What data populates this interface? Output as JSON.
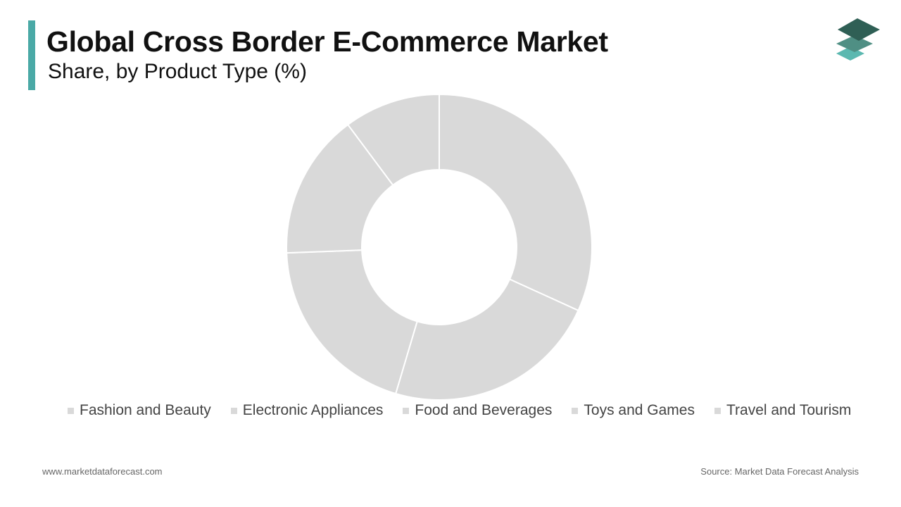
{
  "header": {
    "title": "Global Cross Border E-Commerce Market",
    "subtitle": "Share, by Product Type (%)"
  },
  "colors": {
    "accent": "#4aa9a6",
    "slice": "#d9d9d9",
    "logo_dark": "#2f5f55",
    "logo_mid": "#4f8f84",
    "logo_light": "#5bb8b0"
  },
  "logo": {
    "icon": "stacked-layers-icon"
  },
  "chart_data": {
    "type": "pie",
    "donut": true,
    "categories": [
      "Fashion and Beauty",
      "Electronic Appliances",
      "Food and Beverages",
      "Toys and Games",
      "Travel and Tourism"
    ],
    "values": [
      31.8,
      22.8,
      19.8,
      15.4,
      10.2
    ],
    "legend_position": "bottom"
  },
  "footer": {
    "website": "www.marketdataforecast.com",
    "source": "Source: Market Data Forecast Analysis"
  }
}
